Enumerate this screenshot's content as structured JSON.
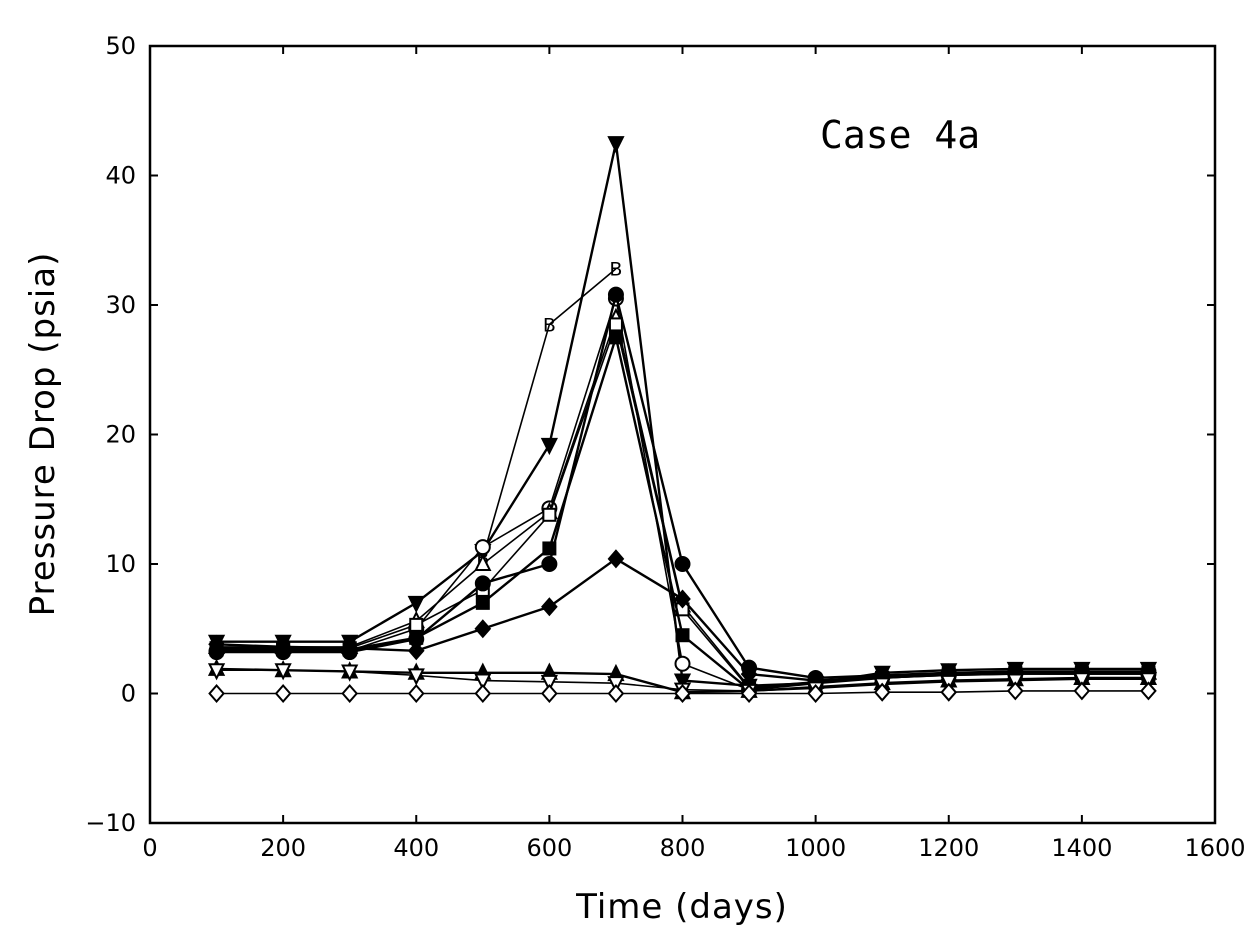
{
  "chart_data": {
    "type": "line",
    "title": "",
    "annotation": "Case 4a",
    "xlabel": "Time (days)",
    "ylabel": "Pressure Drop (psia)",
    "xlim": [
      0,
      1600
    ],
    "ylim": [
      -10,
      50
    ],
    "xticks": [
      0,
      200,
      400,
      600,
      800,
      1000,
      1200,
      1400,
      1600
    ],
    "yticks": [
      -10,
      0,
      10,
      20,
      30,
      40,
      50
    ],
    "grid": false,
    "legend": "none",
    "x": [
      100,
      200,
      300,
      400,
      500,
      600,
      700,
      800,
      900,
      1000,
      1100,
      1200,
      1300,
      1400,
      1500
    ],
    "series": [
      {
        "marker": "triangle-down-filled",
        "values": [
          4.0,
          4.0,
          4.0,
          7.0,
          11.0,
          19.2,
          42.5,
          1.0,
          0.6,
          0.8,
          1.6,
          1.8,
          1.9,
          1.9,
          1.9
        ]
      },
      {
        "marker": "letter-B",
        "x": [
          500,
          600,
          700
        ],
        "values": [
          10.5,
          28.5,
          32.8
        ]
      },
      {
        "marker": "circle-open",
        "values": [
          3.3,
          3.3,
          3.3,
          5.0,
          11.3,
          14.3,
          30.5,
          2.3,
          0.3,
          0.8,
          1.2,
          1.4,
          1.5,
          1.5,
          1.5
        ]
      },
      {
        "marker": "triangle-up-open",
        "values": [
          3.6,
          3.6,
          3.6,
          5.6,
          10.0,
          14.0,
          29.0,
          6.8,
          0.5,
          0.9,
          1.3,
          1.5,
          1.6,
          1.6,
          1.6
        ]
      },
      {
        "marker": "square-open",
        "values": [
          3.5,
          3.5,
          3.5,
          5.3,
          8.0,
          13.8,
          28.5,
          6.5,
          0.4,
          0.9,
          1.2,
          1.4,
          1.5,
          1.5,
          1.5
        ]
      },
      {
        "marker": "circle-filled",
        "values": [
          3.2,
          3.2,
          3.2,
          4.2,
          8.5,
          10.0,
          30.8,
          10.0,
          2.0,
          1.2,
          1.4,
          1.6,
          1.7,
          1.7,
          1.7
        ]
      },
      {
        "marker": "square-filled",
        "values": [
          3.4,
          3.4,
          3.4,
          4.3,
          7.0,
          11.2,
          27.5,
          4.5,
          0.3,
          0.8,
          1.2,
          1.5,
          1.6,
          1.6,
          1.6
        ]
      },
      {
        "marker": "diamond-filled",
        "values": [
          3.8,
          3.6,
          3.5,
          3.3,
          5.0,
          6.7,
          10.4,
          7.3,
          1.5,
          1.0,
          1.3,
          1.6,
          1.6,
          1.6,
          1.6
        ]
      },
      {
        "marker": "triangle-up-filled",
        "values": [
          1.9,
          1.8,
          1.7,
          1.6,
          1.6,
          1.6,
          1.5,
          0.1,
          0.2,
          0.5,
          0.8,
          1.0,
          1.1,
          1.2,
          1.2
        ]
      },
      {
        "marker": "triangle-down-open",
        "values": [
          1.8,
          1.8,
          1.7,
          1.4,
          1.0,
          0.9,
          0.8,
          0.3,
          0.2,
          0.4,
          0.7,
          0.9,
          1.0,
          1.1,
          1.1
        ]
      },
      {
        "marker": "diamond-open",
        "values": [
          0.0,
          0.0,
          0.0,
          0.0,
          0.0,
          0.0,
          0.0,
          0.0,
          0.0,
          0.0,
          0.1,
          0.1,
          0.2,
          0.2,
          0.2
        ]
      }
    ]
  }
}
